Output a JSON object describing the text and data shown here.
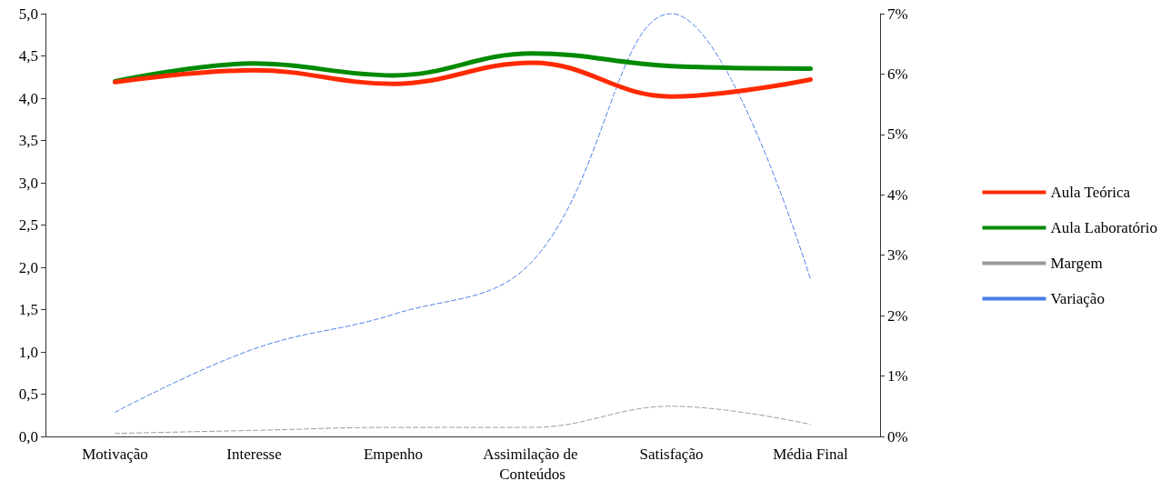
{
  "chart_data": {
    "type": "line",
    "categories": [
      "Motivação",
      "Interesse",
      "Empenho",
      "Assimilação de Conteúdos",
      "Satisfação",
      "Média Final"
    ],
    "series": [
      {
        "name": "Aula Teórica",
        "color": "#ff2a00",
        "line_style": "solid",
        "values": [
          4.19,
          4.33,
          4.17,
          4.42,
          4.02,
          4.22
        ]
      },
      {
        "name": "Aula Laboratório",
        "color": "#008a00",
        "line_style": "solid",
        "values": [
          4.2,
          4.41,
          4.27,
          4.53,
          4.38,
          4.35
        ]
      },
      {
        "name": "Margem",
        "color": "#999999",
        "line_style": "dashed",
        "axis": "y2",
        "values": [
          0.05,
          0.1,
          0.15,
          0.15,
          0.5,
          0.2
        ]
      },
      {
        "name": "Variação",
        "color": "#4a7fe8",
        "line_style": "dashed",
        "axis": "y2",
        "values": [
          0.4,
          1.45,
          2.02,
          2.9,
          7.0,
          2.6
        ]
      }
    ],
    "ylim": [
      0,
      5
    ],
    "yticks": [
      {
        "value": 0,
        "label": "0,0"
      },
      {
        "value": 0.5,
        "label": "0,5"
      },
      {
        "value": 1,
        "label": "1,0"
      },
      {
        "value": 1.5,
        "label": "1,5"
      },
      {
        "value": 2,
        "label": "2,0"
      },
      {
        "value": 2.5,
        "label": "2,5"
      },
      {
        "value": 3,
        "label": "3,0"
      },
      {
        "value": 3.5,
        "label": "3,5"
      },
      {
        "value": 4,
        "label": "4,0"
      },
      {
        "value": 4.5,
        "label": "4,5"
      },
      {
        "value": 5,
        "label": "5,0"
      }
    ],
    "y2lim": [
      0,
      7
    ],
    "y2ticks": [
      {
        "value": 0,
        "label": "0%"
      },
      {
        "value": 1,
        "label": "1%"
      },
      {
        "value": 2,
        "label": "2%"
      },
      {
        "value": 3,
        "label": "3%"
      },
      {
        "value": 4,
        "label": "4%"
      },
      {
        "value": 5,
        "label": "5%"
      },
      {
        "value": 6,
        "label": "6%"
      },
      {
        "value": 7,
        "label": "7%"
      }
    ],
    "legend": "right",
    "marker": "none",
    "grid": false
  }
}
